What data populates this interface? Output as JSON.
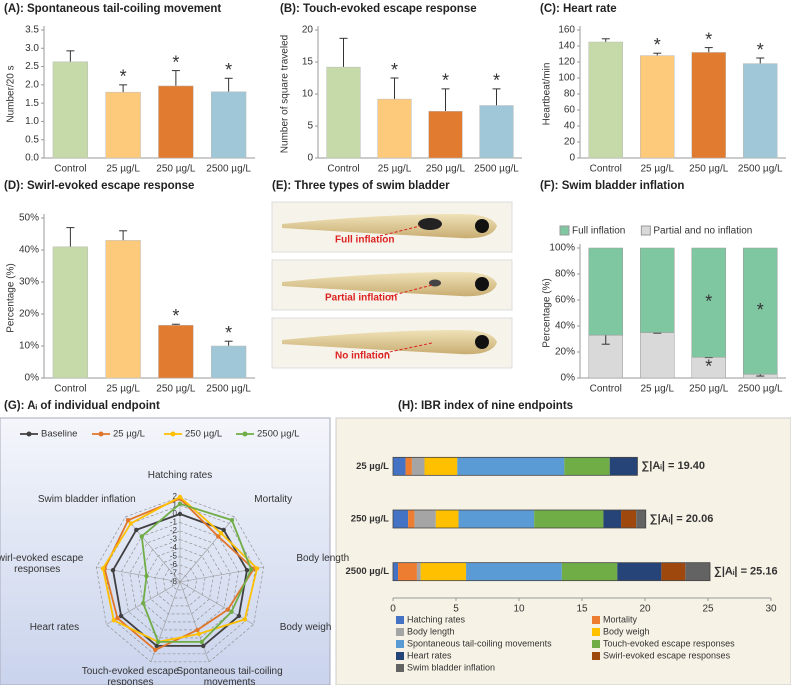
{
  "chart_data": [
    {
      "type": "bar",
      "title": "(A): Spontaneous tail-coiling movement",
      "y_label": "Number/20 s",
      "categories": [
        "Control",
        "25 µg/L",
        "250 µg/L",
        "2500 µg/L"
      ],
      "values": [
        2.63,
        1.8,
        1.97,
        1.81
      ],
      "errors": [
        0.3,
        0.2,
        0.42,
        0.37
      ],
      "colors": [
        "#c6d9a9",
        "#fdca7b",
        "#e07b2f",
        "#a0c7d7"
      ],
      "significance_marker": "*",
      "significant": [
        false,
        true,
        true,
        true
      ],
      "ylim": [
        0,
        3.5
      ],
      "yticks": [
        {
          "value": 0,
          "label": "0.0"
        },
        0.5,
        {
          "value": 1,
          "label": "1.0"
        },
        1.5,
        {
          "value": 2,
          "label": "2.0"
        },
        2.5,
        {
          "value": 3,
          "label": "3.0"
        },
        3.5
      ]
    },
    {
      "type": "bar",
      "title": "(B): Touch-evoked escape response",
      "y_label": "Number of square traveled",
      "categories": [
        "Control",
        "25 µg/L",
        "250 µg/L",
        "2500 µg/L"
      ],
      "values": [
        14.2,
        9.2,
        7.3,
        8.2
      ],
      "errors": [
        4.5,
        3.3,
        3.5,
        2.6
      ],
      "colors": [
        "#c6d9a9",
        "#fdca7b",
        "#e07b2f",
        "#a0c7d7"
      ],
      "significance_marker": "*",
      "significant": [
        false,
        true,
        true,
        true
      ],
      "ylim": [
        0,
        20
      ],
      "yticks": [
        0,
        5,
        10,
        15,
        20
      ]
    },
    {
      "type": "bar",
      "title": "(C): Heart rate",
      "y_label": "Heartbeat/min",
      "categories": [
        "Control",
        "25 µg/L",
        "250 µg/L",
        "2500 µg/L"
      ],
      "values": [
        145,
        128,
        132,
        118
      ],
      "errors": [
        4,
        3,
        6,
        7
      ],
      "colors": [
        "#c6d9a9",
        "#fdca7b",
        "#e07b2f",
        "#a0c7d7"
      ],
      "significance_marker": "*",
      "significant": [
        false,
        true,
        true,
        true
      ],
      "ylim": [
        0,
        160
      ],
      "yticks": [
        0,
        20,
        40,
        60,
        80,
        100,
        120,
        140,
        160
      ]
    },
    {
      "type": "bar",
      "title": "(D): Swirl-evoked escape response",
      "y_label": "Percentage (%)",
      "categories": [
        "Control",
        "25 µg/L",
        "250 µg/L",
        "2500 µg/L"
      ],
      "values": [
        41,
        43,
        16.5,
        10
      ],
      "errors": [
        6,
        3,
        0.3,
        1.5
      ],
      "colors": [
        "#c6d9a9",
        "#fdca7b",
        "#e07b2f",
        "#a0c7d7"
      ],
      "significance_marker": "*",
      "significant": [
        false,
        false,
        true,
        true
      ],
      "ylim": [
        0,
        50
      ],
      "yticks": [
        {
          "value": 0,
          "label": "0%"
        },
        {
          "value": 10,
          "label": "10%"
        },
        {
          "value": 20,
          "label": "20%"
        },
        {
          "value": 30,
          "label": "30%"
        },
        {
          "value": 40,
          "label": "40%"
        },
        {
          "value": 50,
          "label": "50%"
        }
      ]
    },
    {
      "type": "stacked_bar",
      "title": "(F): Swim bladder inflation",
      "y_label": "Percentage (%)",
      "categories": [
        "Control",
        "25 µg/L",
        "250 µg/L",
        "2500 µg/L"
      ],
      "significance_marker": "*",
      "series": [
        {
          "name": "Full inflation",
          "color": "#7fc7a1",
          "values": [
            67,
            65,
            84,
            97
          ],
          "significant": [
            false,
            false,
            true,
            true
          ]
        },
        {
          "name": "Partial and no inflation",
          "color": "#d9d9d9",
          "values": [
            33,
            35,
            16,
            3
          ],
          "errors": [
            7,
            0.5,
            0.3,
            1.5
          ],
          "significant": [
            false,
            false,
            true,
            true
          ]
        }
      ],
      "ylim": [
        0,
        100
      ],
      "yticks": [
        {
          "value": 0,
          "label": "0%"
        },
        {
          "value": 20,
          "label": "20%"
        },
        {
          "value": 40,
          "label": "40%"
        },
        {
          "value": 60,
          "label": "60%"
        },
        {
          "value": 80,
          "label": "80%"
        },
        {
          "value": 100,
          "label": "100%"
        }
      ]
    },
    {
      "type": "radar",
      "title": "(G): Aᵢ of individual endpoint",
      "axes": [
        "Hatching rates",
        "Mortality",
        "Body length",
        "Body weigh",
        "Spontaneous tail-coiling movements",
        "Touch-evoked escape responses",
        "Heart rates",
        "Swirl-evoked escape responses",
        "Swim bladder inflation"
      ],
      "series": [
        {
          "name": "Baseline",
          "color": "#404040",
          "values": [
            0,
            0,
            0,
            0,
            0,
            0,
            0,
            0,
            0
          ]
        },
        {
          "name": "25 µg/L",
          "color": "#e0762b",
          "values": [
            1.8,
            -1,
            0.8,
            -1.5,
            -2,
            0.5,
            0.5,
            1,
            1.5
          ]
        },
        {
          "name": "250 µg/L",
          "color": "#ffc000",
          "values": [
            2,
            -0.5,
            1.2,
            0.8,
            -1.5,
            -0.5,
            1,
            1.2,
            1
          ]
        },
        {
          "name": "2500 µg/L",
          "color": "#70ad47",
          "values": [
            1.2,
            1.5,
            0.5,
            -1,
            -0.5,
            -0.5,
            -3,
            -4,
            -1
          ]
        }
      ],
      "rlim": [
        -8,
        2
      ],
      "rticks": [
        -8,
        -7,
        -6,
        -5,
        -4,
        -3,
        -2,
        -1,
        0,
        1,
        2
      ]
    },
    {
      "type": "stacked_barh",
      "title": "(H): IBR index of nine endpoints",
      "categories": [
        "25 µg/L",
        "250 µg/L",
        "2500 µg/L"
      ],
      "total_labels": [
        "∑|Aᵢ| = 19.40",
        "∑|Aᵢ| = 20.06",
        "∑|Aᵢ| = 25.16"
      ],
      "series": [
        {
          "name": "Hatching rates",
          "color": "#4472c4",
          "values": [
            1.0,
            1.2,
            0.4
          ]
        },
        {
          "name": "Mortality",
          "color": "#ed7d31",
          "values": [
            0.5,
            0.5,
            1.5
          ]
        },
        {
          "name": "Body length",
          "color": "#a5a5a5",
          "values": [
            1.0,
            1.7,
            0.3
          ]
        },
        {
          "name": "Body weigh",
          "color": "#ffc000",
          "values": [
            2.6,
            1.8,
            3.6
          ]
        },
        {
          "name": "Spontaneous tail-coiling movements",
          "color": "#5b9bd5",
          "values": [
            8.5,
            6.0,
            7.6
          ]
        },
        {
          "name": "Touch-evoked escape responses",
          "color": "#70ad47",
          "values": [
            3.6,
            5.5,
            4.4
          ]
        },
        {
          "name": "Heart rates",
          "color": "#264478",
          "values": [
            2.2,
            1.4,
            3.5
          ]
        },
        {
          "name": "Swirl-evoked escape responses",
          "color": "#9e480e",
          "values": [
            0,
            1.2,
            1.9
          ]
        },
        {
          "name": "Swim bladder inflation",
          "color": "#636363",
          "values": [
            0,
            0.76,
            1.96
          ]
        }
      ],
      "xlim": [
        0,
        30
      ],
      "xticks": [
        0,
        5,
        10,
        15,
        20,
        25,
        30
      ]
    }
  ],
  "image_panel": {
    "title": "(E): Three types of swim bladder",
    "labels": [
      "Full inflation",
      "Partial inflation",
      "No inflation"
    ]
  }
}
